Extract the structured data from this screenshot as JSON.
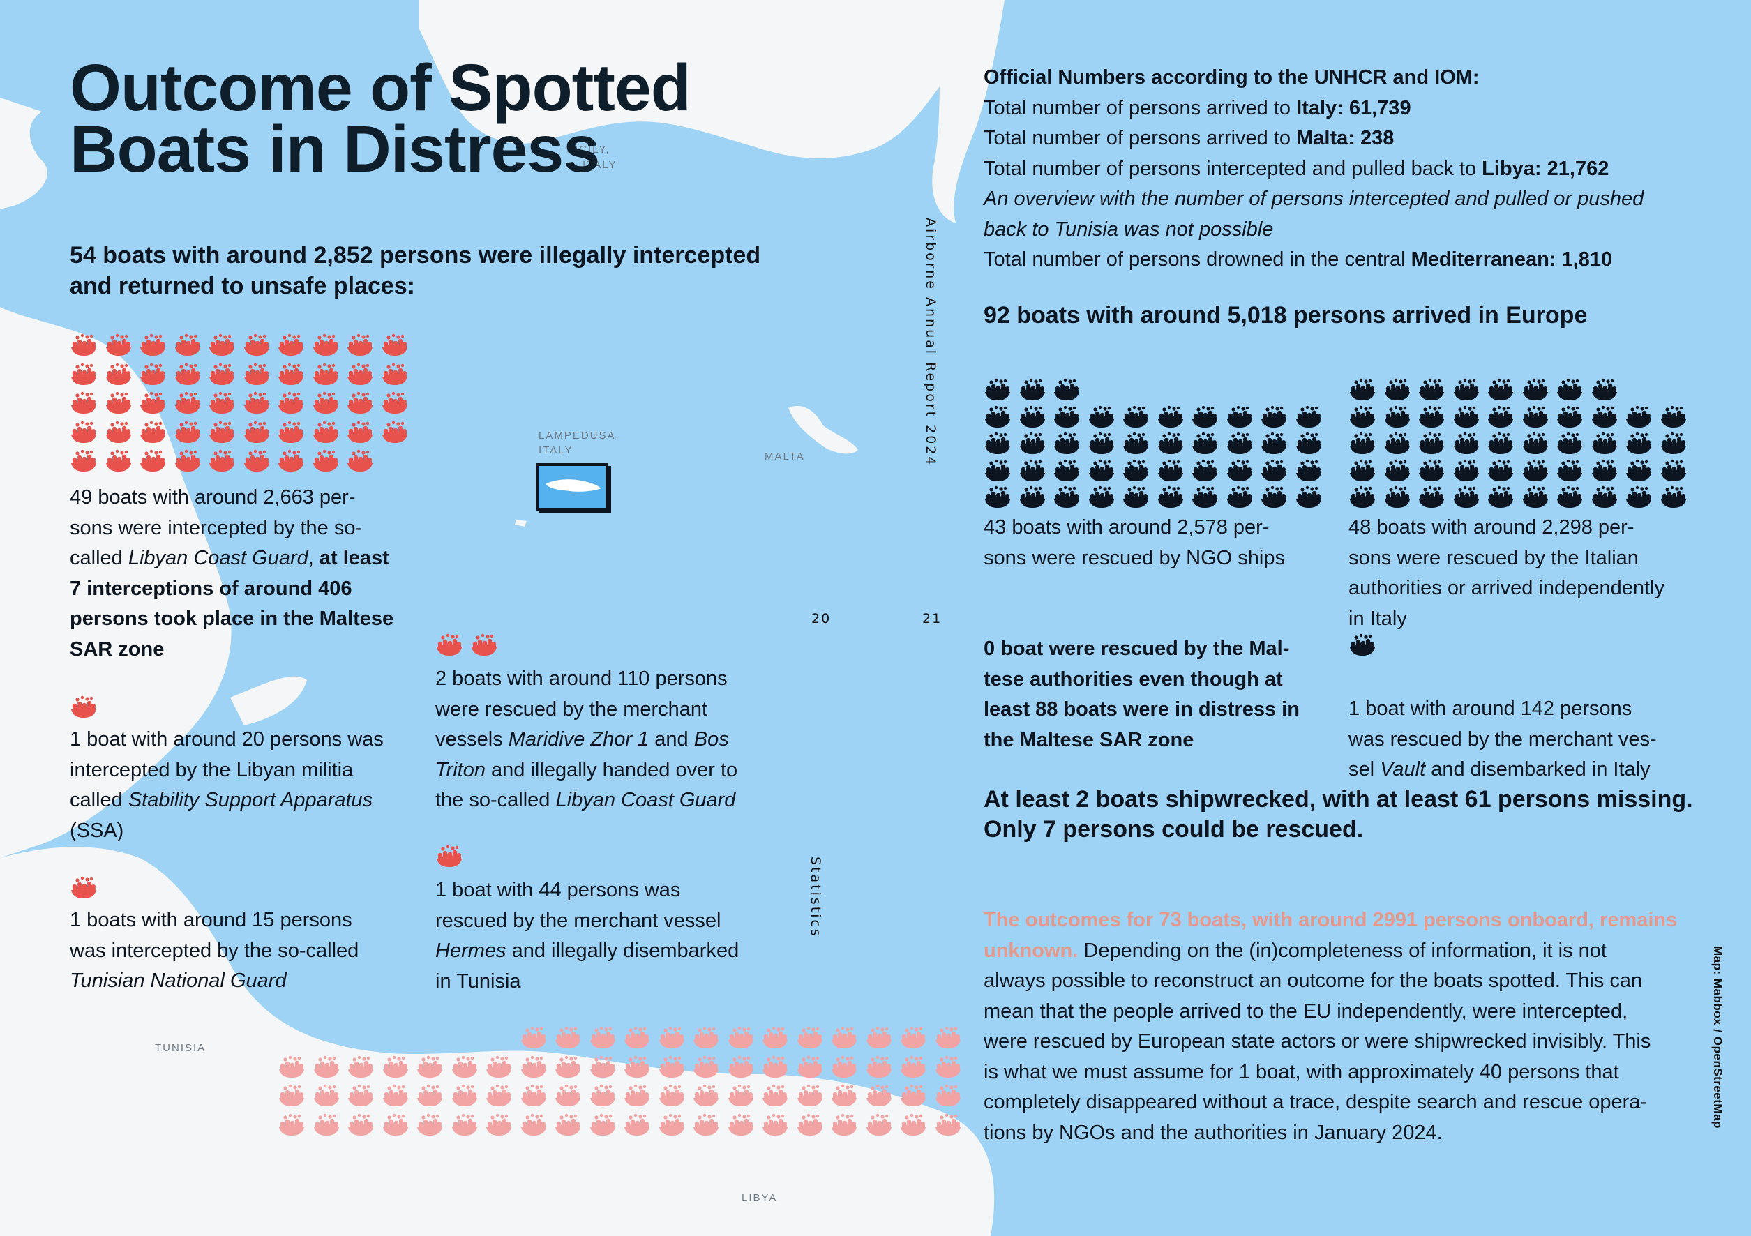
{
  "title": {
    "line1": "Outcome of Spotted",
    "line2": "Boats in Distress"
  },
  "colors": {
    "sea": "#9ed3f5",
    "land": "#f5f6f7",
    "red": "#e8524c",
    "pink": "#f2a3a3",
    "black": "#0c1520",
    "unknown_text": "#e39a8c",
    "lampedusa_box": "#56b2ee"
  },
  "icon_name": "boat-with-people-icon",
  "map_labels": {
    "sicily_1": "SICILY,",
    "sicily_2": "ITALY",
    "lampedusa_1": "LAMPEDUSA,",
    "lampedusa_2": "ITALY",
    "malta": "MALTA",
    "tunisia": "TUNISIA",
    "libya": "LIBYA"
  },
  "left": {
    "lead_1": "54 boats with around 2,852 persons were illegally intercepted",
    "lead_2": "and returned to unsafe places:",
    "libyan": {
      "l1": "49 boats with around 2,663 per-",
      "l2": "sons were intercepted by the so-",
      "l3a": "called ",
      "l3b": "Libyan Coast Guard",
      "l3c": ", ",
      "l3d": "at least",
      "l4": "7 interceptions of around 406",
      "l5": "persons took place in the Maltese",
      "l6": "SAR zone"
    },
    "ssa": {
      "l1": "1 boat with around 20 persons was",
      "l2": "intercepted by the Libyan militia",
      "l3a": "called ",
      "l3b": "Stability Support Apparatus",
      "l4": "(SSA)"
    },
    "tunisia": {
      "l1": "1 boats with around 15 persons",
      "l2": "was intercepted by the so-called",
      "l3": "Tunisian National Guard"
    },
    "merchant_libya": {
      "l1": "2 boats with around 110 persons",
      "l2": "were rescued by the merchant",
      "l3a": "vessels ",
      "l3b": "Maridive Zhor 1",
      "l3c": " and ",
      "l3d": "Bos",
      "l4a": "Triton",
      "l4b": " and illegally handed over to",
      "l5a": "the so-called ",
      "l5b": "Libyan Coast Guard"
    },
    "hermes": {
      "l1": "1 boat with 44 persons was",
      "l2": "rescued by the merchant vessel",
      "l3a": "Hermes",
      "l3b": " and illegally disembarked",
      "l4": "in Tunisia"
    }
  },
  "right": {
    "official_heading": "Official Numbers according to the UNHCR and IOM:",
    "italy_a": "Total number of persons arrived to ",
    "italy_b": "Italy: 61,739",
    "malta_a": "Total number of persons arrived to ",
    "malta_b": "Malta: 238",
    "libya_a": "Total number of persons intercepted and pulled back to ",
    "libya_b": "Libya: 21,762",
    "tunisia_note_1": "An overview with the number of persons intercepted and pulled or pushed",
    "tunisia_note_2": "back to Tunisia was not possible",
    "drowned_a": "Total number of persons drowned in the central ",
    "drowned_b": "Mediterranean: 1,810",
    "arrived_heading": "92 boats with around 5,018 persons arrived in Europe",
    "ngo": {
      "l1": "43 boats with around 2,578 per-",
      "l2": "sons were rescued by NGO ships"
    },
    "italian": {
      "l1": "48 boats with around 2,298 per-",
      "l2": "sons were rescued by the Italian",
      "l3": "authorities or arrived independently",
      "l4": "in Italy"
    },
    "maltese": {
      "l1": "0 boat were rescued by the Mal-",
      "l2": "tese authorities even though at",
      "l3": "least 88 boats were in distress in",
      "l4": "the Maltese SAR zone"
    },
    "vault": {
      "l1": "1 boat with around 142 persons",
      "l2": "was rescued by the merchant ves-",
      "l3a": "sel ",
      "l3b": "Vault",
      "l3c": " and disembarked in Italy"
    },
    "shipwreck_1": "At least 2 boats shipwrecked, with at least 61 persons missing.",
    "shipwreck_2": "Only 7 persons could be rescued.",
    "unknown": {
      "l1": "The outcomes for 73 boats, with around 2991 persons onboard, remains",
      "l2a": "unknown.",
      "l2b": " Depending on the (in)completeness of information, it is not",
      "l3": "always possible to reconstruct an outcome for the boats spotted. This can",
      "l4": "mean that the people arrived to the EU independently, were intercepted,",
      "l5": "were rescued by European state actors or were shipwrecked invisibly. This",
      "l6": "is what we  must assume for 1 boat, with approximately 40 persons that",
      "l7": "completely disappeared without a trace, despite search and rescue opera-",
      "l8": "tions by NGOs and the authorities in January 2024."
    }
  },
  "counts": {
    "libyan": 49,
    "ssa": 1,
    "tunisia": 1,
    "merchant_libya": 2,
    "hermes": 1,
    "ngo": 43,
    "italian": 48,
    "vault": 1,
    "unknown": 73
  },
  "vertical_report": "Airborne Annual Report 2024",
  "vertical_section": "Statistics",
  "page_left": "20",
  "page_right": "21",
  "credit": "Map: Mabbox / OpenStreetMap"
}
